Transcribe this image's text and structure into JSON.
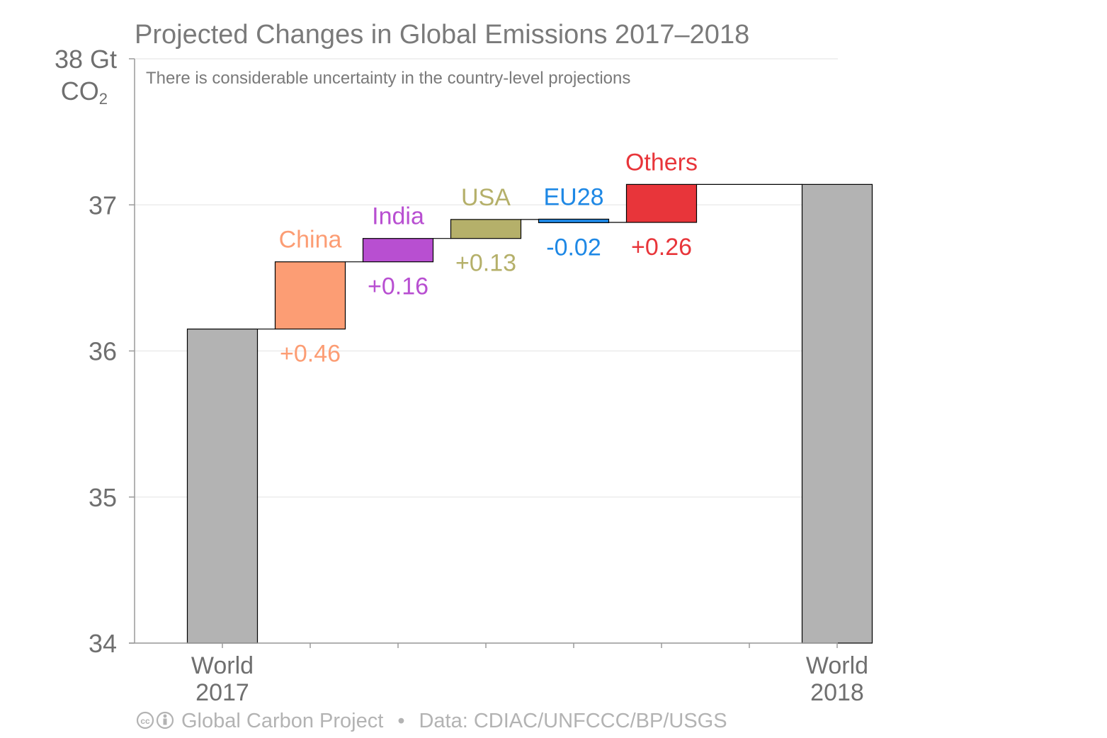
{
  "chart_data": {
    "type": "bar",
    "subtype": "waterfall",
    "title": "Projected Changes in Global Emissions 2017–2018",
    "subtitle": "There is considerable uncertainty in the country-level projections",
    "y_unit_line1": "38 Gt",
    "y_unit_line2": "CO",
    "y_unit_sub": "2",
    "ylim": [
      34,
      38
    ],
    "yticks": [
      "34",
      "35",
      "36",
      "37"
    ],
    "grid": true,
    "start": {
      "line1": "World",
      "line2": "2017",
      "value": 36.15,
      "color": "#b3b3b3"
    },
    "end": {
      "line1": "World",
      "line2": "2018",
      "value": 37.14,
      "color": "#b3b3b3"
    },
    "steps": [
      {
        "name": "China",
        "delta": 0.46,
        "label": "+0.46",
        "color": "#fc9d74"
      },
      {
        "name": "India",
        "delta": 0.16,
        "label": "+0.16",
        "color": "#b84fd1"
      },
      {
        "name": "USA",
        "delta": 0.13,
        "label": "+0.13",
        "color": "#b5b06a"
      },
      {
        "name": "EU28",
        "delta": -0.02,
        "label": "-0.02",
        "color": "#1e88e5"
      },
      {
        "name": "Others",
        "delta": 0.26,
        "label": "+0.26",
        "color": "#e8353a"
      }
    ]
  },
  "footer": {
    "cc_icon": "cc-icon",
    "by_icon": "attribution-icon",
    "credit": "Global Carbon Project",
    "separator": "•",
    "source": "Data: CDIAC/UNFCCC/BP/USGS"
  }
}
